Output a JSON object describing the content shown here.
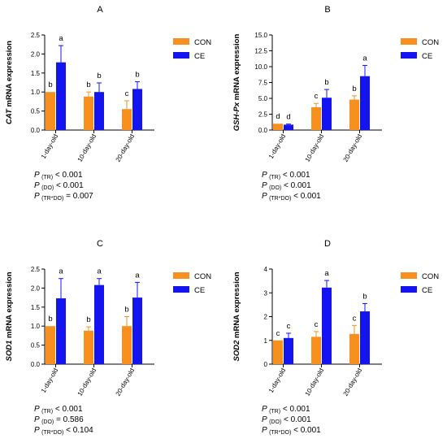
{
  "categories": [
    "1-day-old",
    "10-day-old",
    "20-day-old"
  ],
  "series_names": [
    "CON",
    "CE"
  ],
  "colors": {
    "CON": "#f7901e",
    "CE": "#1414f0"
  },
  "chart_data": [
    {
      "type": "bar",
      "panel": "A",
      "gene": "CAT",
      "ylabel_suffix": " mRNA expression",
      "ylim": [
        0,
        2.5
      ],
      "yticks": [
        "0.0",
        "0.5",
        "1.0",
        "1.5",
        "2.0",
        "2.5"
      ],
      "categories": [
        "1-day-old",
        "10-day-old",
        "20-day-old"
      ],
      "legend": "top-right",
      "series": [
        {
          "name": "CON",
          "values": [
            1.0,
            0.88,
            0.55
          ],
          "errors": [
            0.0,
            0.12,
            0.22
          ],
          "letters": [
            "b",
            "b",
            "c"
          ]
        },
        {
          "name": "CE",
          "values": [
            1.78,
            1.0,
            1.08
          ],
          "errors": [
            0.44,
            0.24,
            0.19
          ],
          "letters": [
            "a",
            "b",
            "b"
          ]
        }
      ],
      "stats": [
        {
          "p": "P",
          "sub": "(TR)",
          "text": " < 0.001"
        },
        {
          "p": "P",
          "sub": "(DO)",
          "text": " < 0.001"
        },
        {
          "p": "P",
          "sub": "(TR*DO)",
          "text": " = 0.007"
        }
      ]
    },
    {
      "type": "bar",
      "panel": "B",
      "gene": "GSH-Px",
      "ylabel_suffix": " mRNA expression",
      "ylim": [
        0,
        15
      ],
      "yticks": [
        "0.0",
        "2.5",
        "5.0",
        "7.5",
        "10.0",
        "12.5",
        "15.0"
      ],
      "categories": [
        "1-day-old",
        "10-day-old",
        "20-day-old"
      ],
      "legend": "top-right",
      "series": [
        {
          "name": "CON",
          "values": [
            1.0,
            3.6,
            4.8
          ],
          "errors": [
            0.0,
            0.6,
            0.6
          ],
          "letters": [
            "d",
            "c",
            "b"
          ]
        },
        {
          "name": "CE",
          "values": [
            0.85,
            5.1,
            8.5
          ],
          "errors": [
            0.1,
            1.3,
            1.7
          ],
          "letters": [
            "d",
            "b",
            "a"
          ]
        }
      ],
      "stats": [
        {
          "p": "P",
          "sub": "(TR)",
          "text": " < 0.001"
        },
        {
          "p": "P",
          "sub": "(DO)",
          "text": " < 0.001"
        },
        {
          "p": "P",
          "sub": "(TR*DO)",
          "text": " < 0.001"
        }
      ]
    },
    {
      "type": "bar",
      "panel": "C",
      "gene": "SOD1",
      "ylabel_suffix": " mRNA expression",
      "ylim": [
        0,
        2.5
      ],
      "yticks": [
        "0.0",
        "0.5",
        "1.0",
        "1.5",
        "2.0",
        "2.5"
      ],
      "categories": [
        "1-day-old",
        "10-day-old",
        "20-day-old"
      ],
      "legend": "top-right",
      "series": [
        {
          "name": "CON",
          "values": [
            1.0,
            0.88,
            1.0
          ],
          "errors": [
            0.0,
            0.1,
            0.25
          ],
          "letters": [
            "b",
            "b",
            "b"
          ]
        },
        {
          "name": "CE",
          "values": [
            1.73,
            2.08,
            1.75
          ],
          "errors": [
            0.52,
            0.17,
            0.4
          ],
          "letters": [
            "a",
            "a",
            "a"
          ]
        }
      ],
      "stats": [
        {
          "p": "P",
          "sub": "(TR)",
          "text": " < 0.001"
        },
        {
          "p": "P",
          "sub": "(DO)",
          "text": " = 0.586"
        },
        {
          "p": "P",
          "sub": "(TR*DO)",
          "text": " < 0.104"
        }
      ]
    },
    {
      "type": "bar",
      "panel": "D",
      "gene": "SOD2",
      "ylabel_suffix": " mRNA expression",
      "ylim": [
        0,
        4
      ],
      "yticks": [
        "0",
        "1",
        "2",
        "3",
        "4"
      ],
      "categories": [
        "1-day-old",
        "10-day-old",
        "20-day-old"
      ],
      "legend": "top-right",
      "series": [
        {
          "name": "CON",
          "values": [
            1.0,
            1.15,
            1.27
          ],
          "errors": [
            0.0,
            0.22,
            0.36
          ],
          "letters": [
            "c",
            "c",
            "c"
          ]
        },
        {
          "name": "CE",
          "values": [
            1.1,
            3.22,
            2.22
          ],
          "errors": [
            0.2,
            0.3,
            0.33
          ],
          "letters": [
            "c",
            "a",
            "b"
          ]
        }
      ],
      "stats": [
        {
          "p": "P",
          "sub": "(TR)",
          "text": " < 0.001"
        },
        {
          "p": "P",
          "sub": "(DO)",
          "text": " < 0.001"
        },
        {
          "p": "P",
          "sub": "(TR*DO)",
          "text": " < 0.001"
        }
      ]
    }
  ]
}
